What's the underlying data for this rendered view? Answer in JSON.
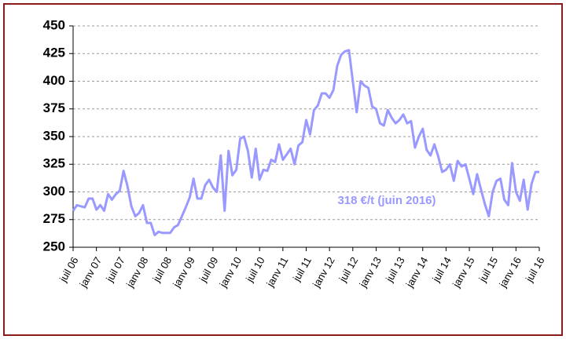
{
  "chart_data": {
    "type": "line",
    "categories": [
      "juil 06",
      null,
      null,
      null,
      null,
      null,
      "janv 07",
      null,
      null,
      null,
      null,
      null,
      "juil 07",
      null,
      null,
      null,
      null,
      null,
      "janv 08",
      null,
      null,
      null,
      null,
      null,
      "juil 08",
      null,
      null,
      null,
      null,
      null,
      "janv 09",
      null,
      null,
      null,
      null,
      null,
      "juil 09",
      null,
      null,
      null,
      null,
      null,
      "janv 10",
      null,
      null,
      null,
      null,
      null,
      "juil 10",
      null,
      null,
      null,
      null,
      null,
      "janv 11",
      null,
      null,
      null,
      null,
      null,
      "juil 11",
      null,
      null,
      null,
      null,
      null,
      "janv 12",
      null,
      null,
      null,
      null,
      null,
      "juil 12",
      null,
      null,
      null,
      null,
      null,
      "janv 13",
      null,
      null,
      null,
      null,
      null,
      "juil 13",
      null,
      null,
      null,
      null,
      null,
      "janv 14",
      null,
      null,
      null,
      null,
      null,
      "juil 14",
      null,
      null,
      null,
      null,
      null,
      "janv 15",
      null,
      null,
      null,
      null,
      null,
      "juil 15",
      null,
      null,
      null,
      null,
      null,
      "janv 16",
      null,
      null,
      null,
      null,
      null,
      "juil 16"
    ],
    "series": [
      {
        "color": "#9999ff",
        "values": [
          283,
          288,
          287,
          286,
          294,
          294,
          284,
          288,
          283,
          298,
          293,
          298,
          301,
          319,
          305,
          287,
          278,
          281,
          288,
          272,
          272,
          261,
          264,
          263,
          263,
          263,
          268,
          270,
          278,
          286,
          295,
          312,
          294,
          294,
          306,
          311,
          304,
          300,
          333,
          283,
          337,
          315,
          320,
          348,
          350,
          337,
          313,
          339,
          311,
          320,
          319,
          329,
          327,
          343,
          329,
          334,
          339,
          325,
          342,
          345,
          365,
          352,
          374,
          378,
          389,
          389,
          385,
          392,
          414,
          424,
          427,
          428,
          400,
          372,
          400,
          396,
          394,
          377,
          375,
          362,
          360,
          374,
          367,
          362,
          365,
          370,
          362,
          364,
          340,
          350,
          357,
          338,
          333,
          343,
          332,
          318,
          320,
          325,
          310,
          328,
          323,
          325,
          312,
          298,
          316,
          302,
          289,
          278,
          300,
          310,
          312,
          293,
          288,
          326,
          300,
          292,
          311,
          284,
          307,
          318,
          318
        ]
      }
    ],
    "annotation": "318 €/t (juin 2016)",
    "ylim": [
      250,
      450
    ],
    "yticks": [
      250,
      275,
      300,
      325,
      350,
      375,
      400,
      425,
      450
    ],
    "grid": true
  }
}
